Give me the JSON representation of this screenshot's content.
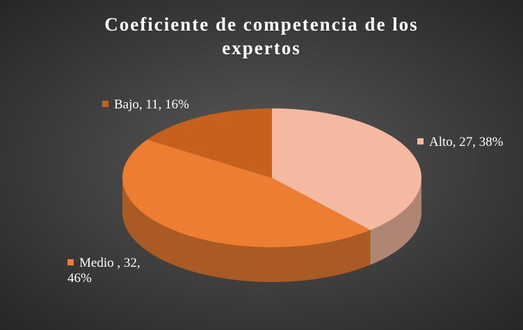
{
  "chart_data": {
    "type": "pie3d",
    "title": "Coeficiente de competencia de los expertos",
    "categories": [
      "Alto",
      "Medio ",
      "Bajo"
    ],
    "values": [
      27,
      32,
      11
    ],
    "value_labels": [
      "Alto, 27, 38%",
      "Medio , 32, 46%",
      "Bajo, 11, 16%"
    ],
    "colors": [
      "#f4b9a0",
      "#ed7d31",
      "#c7601c"
    ]
  }
}
